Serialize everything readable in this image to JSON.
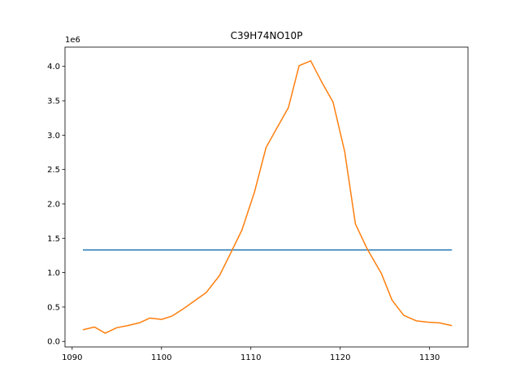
{
  "chart_data": {
    "type": "line",
    "title": "C39H74NO10P",
    "xlabel": "",
    "ylabel": "",
    "y_multiplier_label": "1e6",
    "xlim": [
      1089.2,
      1134.3
    ],
    "ylim": [
      -0.08,
      4.28
    ],
    "x_ticks": [
      1090,
      1100,
      1110,
      1120,
      1130
    ],
    "y_ticks": [
      0.0,
      0.5,
      1.0,
      1.5,
      2.0,
      2.5,
      3.0,
      3.5,
      4.0
    ],
    "x_tick_labels": [
      "1090",
      "1100",
      "1110",
      "1120",
      "1130"
    ],
    "y_tick_labels": [
      "0.0",
      "0.5",
      "1.0",
      "1.5",
      "2.0",
      "2.5",
      "3.0",
      "3.5",
      "4.0"
    ],
    "grid": false,
    "series": [
      {
        "color": "#ff7f0e",
        "x": [
          1091.2,
          1092.5,
          1093.7,
          1095.0,
          1096.2,
          1097.5,
          1098.7,
          1100.0,
          1101.2,
          1102.5,
          1103.7,
          1105.0,
          1106.5,
          1107.8,
          1109.0,
          1110.4,
          1111.7,
          1112.9,
          1114.2,
          1115.4,
          1116.7,
          1117.9,
          1119.2,
          1120.5,
          1121.7,
          1123.0,
          1124.6,
          1125.8,
          1127.1,
          1128.5,
          1129.8,
          1131.1,
          1132.5
        ],
        "values": [
          0.17,
          0.21,
          0.12,
          0.2,
          0.23,
          0.27,
          0.34,
          0.32,
          0.37,
          0.48,
          0.59,
          0.71,
          0.96,
          1.3,
          1.62,
          2.17,
          2.82,
          3.1,
          3.4,
          4.01,
          4.08,
          3.78,
          3.48,
          2.76,
          1.71,
          1.35,
          0.99,
          0.6,
          0.38,
          0.3,
          0.28,
          0.27,
          0.23
        ]
      },
      {
        "color": "#1f77b4",
        "x": [
          1091.2,
          1132.5
        ],
        "values": [
          1.33,
          1.33
        ]
      }
    ]
  }
}
